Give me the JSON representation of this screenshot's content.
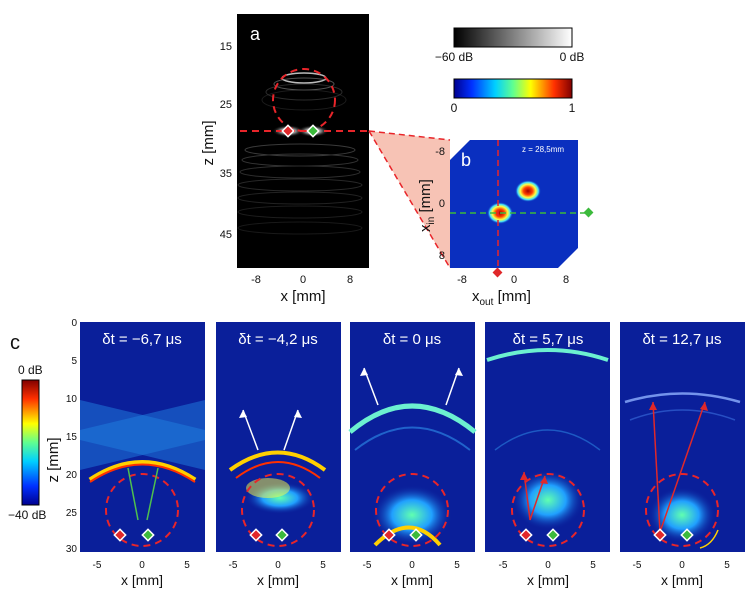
{
  "panel_a": {
    "letter": "a",
    "y_label": "z [mm]",
    "x_label": "x [mm]",
    "y_ticks": [
      "15",
      "25",
      "35",
      "45"
    ],
    "x_ticks": [
      "-8",
      "0",
      "8"
    ]
  },
  "colorbars": {
    "gray_min": "−60 dB",
    "gray_max": "0 dB",
    "jet_min": "0",
    "jet_max": "1"
  },
  "panel_b": {
    "letter": "b",
    "annotation": "z = 28,5mm",
    "y_label_main": "x",
    "y_label_sub": "in",
    "y_label_unit": " [mm]",
    "x_label_main": "x",
    "x_label_sub": "out",
    "x_label_unit": " [mm]",
    "y_ticks": [
      "-8",
      "0",
      "8"
    ],
    "x_ticks": [
      "-8",
      "0",
      "8"
    ]
  },
  "panel_c": {
    "letter": "c",
    "cbar_top": "0 dB",
    "cbar_bottom": "−40 dB",
    "y_label": "z [mm]",
    "y_ticks": [
      "0",
      "5",
      "10",
      "15",
      "20",
      "25",
      "30"
    ],
    "x_ticks": [
      "-5",
      "0",
      "5"
    ],
    "x_label": "x [mm]",
    "frames": [
      {
        "title": "δt = −6,7 μs"
      },
      {
        "title": "δt = −4,2 μs"
      },
      {
        "title": "δt = 0 μs"
      },
      {
        "title": "δt = 5,7 μs"
      },
      {
        "title": "δt = 12,7 μs"
      }
    ]
  },
  "colors": {
    "red_marker": "#e0282a",
    "green_marker": "#3cba3c",
    "panel_bg": "#0a1f9a",
    "accent_red_dash": "#e8252a"
  }
}
